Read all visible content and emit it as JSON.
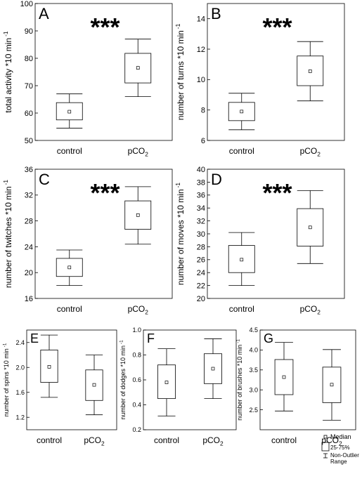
{
  "legend": {
    "median": "Median",
    "box": "25-75%",
    "whisker_line1": "Non-Outlier",
    "whisker_line2": "Range"
  },
  "chart_data": [
    {
      "type": "box",
      "panel_label": "A",
      "significance": "***",
      "ylabel": "total activity *10 min",
      "ylabel_superscript": "-1",
      "categories": [
        "control",
        "pCO"
      ],
      "category_subscripts": [
        "",
        "2"
      ],
      "ylim": [
        50,
        100
      ],
      "yticks": [
        "50",
        "60",
        "70",
        "80",
        "90",
        "100"
      ],
      "ytick_values": [
        50,
        60,
        70,
        80,
        90,
        100
      ],
      "boxes": [
        {
          "min": 54.5,
          "q1": 57.5,
          "median": 60.5,
          "q3": 63.8,
          "max": 67.0
        },
        {
          "min": 66.0,
          "q1": 71.0,
          "median": 76.5,
          "q3": 81.8,
          "max": 87.0
        }
      ]
    },
    {
      "type": "box",
      "panel_label": "B",
      "significance": "***",
      "ylabel": "number of turns *10 min",
      "ylabel_superscript": "-1",
      "categories": [
        "control",
        "pCO"
      ],
      "category_subscripts": [
        "",
        "2"
      ],
      "ylim": [
        6,
        15
      ],
      "yticks": [
        "6",
        "8",
        "10",
        "12",
        "14"
      ],
      "ytick_values": [
        6,
        8,
        10,
        12,
        14
      ],
      "boxes": [
        {
          "min": 6.7,
          "q1": 7.3,
          "median": 7.9,
          "q3": 8.5,
          "max": 9.1
        },
        {
          "min": 8.6,
          "q1": 9.6,
          "median": 10.55,
          "q3": 11.55,
          "max": 12.5
        }
      ]
    },
    {
      "type": "box",
      "panel_label": "C",
      "significance": "***",
      "ylabel": "number of twitches *10 min",
      "ylabel_superscript": "-1",
      "categories": [
        "control",
        "pCO"
      ],
      "category_subscripts": [
        "",
        "2"
      ],
      "ylim": [
        16,
        36
      ],
      "yticks": [
        "16",
        "20",
        "24",
        "28",
        "32",
        "36"
      ],
      "ytick_values": [
        16,
        20,
        24,
        28,
        32,
        36
      ],
      "boxes": [
        {
          "min": 18.0,
          "q1": 19.4,
          "median": 20.8,
          "q3": 22.2,
          "max": 23.5
        },
        {
          "min": 24.4,
          "q1": 26.7,
          "median": 28.9,
          "q3": 31.1,
          "max": 33.3
        }
      ]
    },
    {
      "type": "box",
      "panel_label": "D",
      "significance": "***",
      "ylabel": "number of moves *10 min",
      "ylabel_superscript": "-1",
      "categories": [
        "control",
        "pCO"
      ],
      "category_subscripts": [
        "",
        "2"
      ],
      "ylim": [
        20,
        40
      ],
      "yticks": [
        "20",
        "22",
        "24",
        "26",
        "28",
        "30",
        "32",
        "34",
        "36",
        "38",
        "40"
      ],
      "ytick_values": [
        20,
        22,
        24,
        26,
        28,
        30,
        32,
        34,
        36,
        38,
        40
      ],
      "boxes": [
        {
          "min": 22.0,
          "q1": 24.0,
          "median": 26.0,
          "q3": 28.2,
          "max": 30.2
        },
        {
          "min": 25.4,
          "q1": 28.1,
          "median": 31.0,
          "q3": 33.9,
          "max": 36.7
        }
      ]
    },
    {
      "type": "box",
      "panel_label": "E",
      "significance": "",
      "ylabel": "number of spins *10 min",
      "ylabel_superscript": "-1",
      "categories": [
        "control",
        "pCO"
      ],
      "category_subscripts": [
        "",
        "2"
      ],
      "ylim": [
        1.0,
        2.6
      ],
      "yticks": [
        "1.2",
        "1.6",
        "2.0",
        "2.4"
      ],
      "ytick_values": [
        1.2,
        1.6,
        2.0,
        2.4
      ],
      "boxes": [
        {
          "min": 1.52,
          "q1": 1.76,
          "median": 2.01,
          "q3": 2.28,
          "max": 2.52
        },
        {
          "min": 1.24,
          "q1": 1.47,
          "median": 1.72,
          "q3": 1.96,
          "max": 2.2
        }
      ]
    },
    {
      "type": "box",
      "panel_label": "F",
      "significance": "",
      "ylabel": "number of dodges *10 min",
      "ylabel_superscript": "-1",
      "categories": [
        "control",
        "pCO"
      ],
      "category_subscripts": [
        "",
        "2"
      ],
      "ylim": [
        0.2,
        1.0
      ],
      "yticks": [
        "0.2",
        "0.4",
        "0.6",
        "0.8",
        "1.0"
      ],
      "ytick_values": [
        0.2,
        0.4,
        0.6,
        0.8,
        1.0
      ],
      "boxes": [
        {
          "min": 0.31,
          "q1": 0.45,
          "median": 0.58,
          "q3": 0.72,
          "max": 0.85
        },
        {
          "min": 0.45,
          "q1": 0.57,
          "median": 0.69,
          "q3": 0.81,
          "max": 0.93
        }
      ]
    },
    {
      "type": "box",
      "panel_label": "G",
      "significance": "",
      "ylabel": "number of brushes *10 min",
      "ylabel_superscript": "-1",
      "categories": [
        "control",
        "pCO"
      ],
      "category_subscripts": [
        "",
        "2"
      ],
      "ylim": [
        2.0,
        4.5
      ],
      "yticks": [
        "2.5",
        "3.0",
        "3.5",
        "4.0",
        "4.5"
      ],
      "ytick_values": [
        2.5,
        3.0,
        3.5,
        4.0,
        4.5
      ],
      "boxes": [
        {
          "min": 2.47,
          "q1": 2.88,
          "median": 3.32,
          "q3": 3.76,
          "max": 4.19
        },
        {
          "min": 2.24,
          "q1": 2.68,
          "median": 3.13,
          "q3": 3.57,
          "max": 4.01
        }
      ]
    }
  ]
}
